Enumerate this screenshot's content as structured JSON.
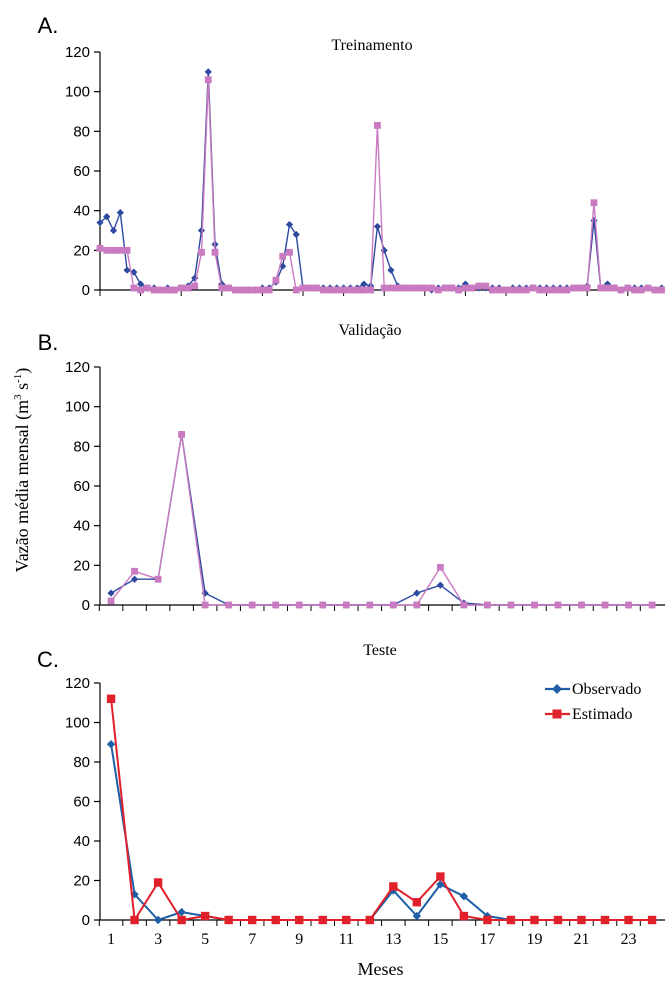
{
  "ylabel_main": "Vazão média mensal (m",
  "ylabel_sup1": "3",
  "ylabel_mid": " s",
  "ylabel_sup2": "-1",
  "ylabel_end": ")",
  "chart_data": [
    {
      "panel": "A.",
      "title": "Treinamento",
      "type": "line",
      "ylim": [
        0,
        120
      ],
      "yticks": [
        0,
        20,
        40,
        60,
        80,
        100,
        120
      ],
      "n": 84,
      "series": [
        {
          "color": "#2d4aa0",
          "values": [
            34,
            37,
            30,
            39,
            10,
            9,
            3,
            1,
            1,
            0,
            1,
            0,
            1,
            2,
            6,
            30,
            110,
            23,
            3,
            1,
            0,
            0,
            0,
            0,
            1,
            1,
            4,
            12,
            33,
            28,
            1,
            1,
            1,
            1,
            1,
            1,
            1,
            1,
            1,
            3,
            2,
            32,
            20,
            10,
            2,
            1,
            1,
            1,
            1,
            0,
            1,
            1,
            1,
            1,
            3,
            1,
            1,
            1,
            1,
            1,
            0,
            1,
            1,
            1,
            1,
            1,
            1,
            1,
            1,
            1,
            1,
            1,
            2,
            35,
            1,
            3,
            1,
            0,
            1,
            1,
            1,
            1,
            0,
            1
          ]
        },
        {
          "color": "#c97ac0",
          "values": [
            21,
            20,
            20,
            20,
            20,
            1,
            0,
            1,
            0,
            0,
            0,
            0,
            1,
            1,
            2,
            19,
            106,
            19,
            1,
            1,
            0,
            0,
            0,
            0,
            0,
            0,
            5,
            17,
            19,
            0,
            1,
            1,
            1,
            0,
            0,
            0,
            0,
            0,
            0,
            0,
            0,
            83,
            1,
            1,
            1,
            1,
            1,
            1,
            1,
            1,
            0,
            1,
            1,
            0,
            1,
            1,
            2,
            2,
            0,
            0,
            0,
            0,
            0,
            0,
            1,
            0,
            0,
            0,
            0,
            0,
            1,
            1,
            1,
            44,
            1,
            1,
            1,
            0,
            1,
            0,
            0,
            1,
            0,
            0
          ]
        }
      ]
    },
    {
      "panel": "B.",
      "title": "Validação",
      "type": "line",
      "ylim": [
        0,
        120
      ],
      "yticks": [
        0,
        20,
        40,
        60,
        80,
        100,
        120
      ],
      "n": 24,
      "series": [
        {
          "color": "#2d4aa0",
          "values": [
            6,
            13,
            13,
            86,
            6,
            0,
            0,
            0,
            0,
            0,
            0,
            0,
            0,
            6,
            10,
            1,
            0,
            0,
            0,
            0,
            0,
            0,
            0,
            0
          ]
        },
        {
          "color": "#c97ac0",
          "values": [
            2,
            17,
            13,
            86,
            0,
            0,
            0,
            0,
            0,
            0,
            0,
            0,
            0,
            0,
            19,
            0,
            0,
            0,
            0,
            0,
            0,
            0,
            0,
            0
          ]
        }
      ]
    },
    {
      "panel": "C.",
      "title": "Teste",
      "type": "line",
      "ylim": [
        0,
        120
      ],
      "yticks": [
        0,
        20,
        40,
        60,
        80,
        100,
        120
      ],
      "n": 24,
      "xlabel": "Meses",
      "xticks": [
        "1",
        "3",
        "5",
        "7",
        "9",
        "11",
        "13",
        "15",
        "17",
        "19",
        "21",
        "23"
      ],
      "legend_position": "top-right",
      "series": [
        {
          "name": "Observado",
          "color": "#1f5fa8",
          "values": [
            89,
            13,
            0,
            4,
            2,
            0,
            0,
            0,
            0,
            0,
            0,
            0,
            15,
            2,
            18,
            12,
            2,
            0,
            0,
            0,
            0,
            0,
            0,
            0
          ]
        },
        {
          "name": "Estimado",
          "color": "#e0202a",
          "values": [
            112,
            0,
            19,
            0,
            2,
            0,
            0,
            0,
            0,
            0,
            0,
            0,
            17,
            9,
            22,
            2,
            0,
            0,
            0,
            0,
            0,
            0,
            0,
            0
          ]
        }
      ]
    }
  ]
}
